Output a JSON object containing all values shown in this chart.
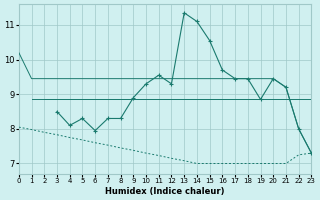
{
  "xlabel": "Humidex (Indice chaleur)",
  "bg_color": "#d0f0f0",
  "grid_color": "#a0c8c8",
  "line_color": "#1a7a6e",
  "x_ticks": [
    0,
    1,
    2,
    3,
    4,
    5,
    6,
    7,
    8,
    9,
    10,
    11,
    12,
    13,
    14,
    15,
    16,
    17,
    18,
    19,
    20,
    21,
    22,
    23
  ],
  "y_ticks": [
    7,
    8,
    9,
    10,
    11
  ],
  "xlim": [
    0,
    23
  ],
  "ylim": [
    6.7,
    11.6
  ],
  "line1_x": [
    0,
    1,
    2,
    3,
    4,
    5,
    6,
    7,
    8,
    9,
    10,
    11,
    12,
    13,
    14,
    15,
    16,
    17,
    18,
    19,
    20,
    21,
    22,
    23
  ],
  "line1_y": [
    10.2,
    9.45,
    9.45,
    9.45,
    9.45,
    9.45,
    9.45,
    9.45,
    9.45,
    9.45,
    9.45,
    9.45,
    9.45,
    9.45,
    9.45,
    9.45,
    9.45,
    9.45,
    9.45,
    9.45,
    9.45,
    9.2,
    8.0,
    7.3
  ],
  "line2_x": [
    2,
    3,
    4,
    5,
    6,
    7,
    8,
    9,
    10,
    11,
    12,
    13,
    14,
    15,
    16,
    17,
    18,
    19
  ],
  "line2_y": [
    8.85,
    8.85,
    8.85,
    8.85,
    8.85,
    8.85,
    8.85,
    8.85,
    8.85,
    8.85,
    8.85,
    8.85,
    8.85,
    8.85,
    8.85,
    8.85,
    8.85,
    8.85
  ],
  "line3_x": [
    1,
    2,
    3,
    4,
    5,
    6,
    7,
    8,
    9,
    10,
    11,
    12,
    13,
    14,
    15,
    16,
    17,
    18,
    19,
    20,
    21,
    22,
    23
  ],
  "line3_y": [
    8.85,
    8.85,
    8.85,
    8.85,
    8.85,
    8.85,
    8.85,
    8.85,
    8.85,
    8.85,
    8.85,
    8.85,
    8.85,
    8.85,
    8.85,
    8.85,
    8.85,
    8.85,
    8.85,
    8.85,
    8.85,
    8.85,
    8.85
  ],
  "line4_x": [
    3,
    4,
    5,
    6,
    7,
    8,
    9,
    10,
    11,
    12,
    13,
    14,
    15,
    16,
    17,
    18,
    19,
    20,
    21,
    22,
    23
  ],
  "line4_y": [
    8.5,
    8.1,
    8.3,
    7.95,
    8.3,
    8.3,
    8.9,
    9.3,
    9.55,
    9.3,
    11.35,
    11.1,
    10.55,
    9.7,
    9.45,
    9.45,
    8.85,
    9.45,
    9.2,
    8.0,
    7.3
  ],
  "line5_x": [
    0,
    1,
    2,
    3,
    4,
    5,
    6,
    7,
    8,
    9,
    10,
    11,
    12,
    13,
    14,
    15,
    16,
    17,
    18,
    19,
    20,
    21,
    22,
    23
  ],
  "line5_y": [
    8.05,
    7.98,
    7.9,
    7.83,
    7.75,
    7.68,
    7.6,
    7.53,
    7.45,
    7.38,
    7.3,
    7.23,
    7.15,
    7.08,
    7.0,
    7.0,
    7.0,
    7.0,
    7.0,
    7.0,
    7.0,
    7.0,
    7.25,
    7.3
  ]
}
